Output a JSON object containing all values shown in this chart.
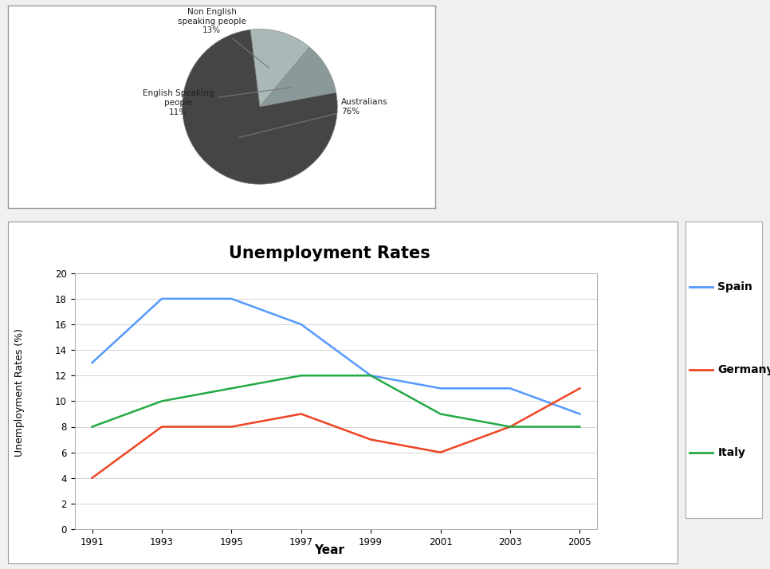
{
  "pie_values": [
    13,
    11,
    76
  ],
  "pie_colors": [
    "#aab8b8",
    "#8a9a9a",
    "#454545"
  ],
  "pie_startangle": 97,
  "line_title": "Unemployment Rates",
  "line_xlabel": "Year",
  "line_ylabel": "Unemployment Rates (%)",
  "years": [
    1991,
    1993,
    1995,
    1997,
    1999,
    2001,
    2003,
    2005
  ],
  "spain": [
    13,
    18,
    18,
    16,
    12,
    11,
    11,
    9
  ],
  "germany": [
    4,
    8,
    8,
    9,
    7,
    6,
    8,
    11
  ],
  "italy": [
    8,
    10,
    11,
    12,
    12,
    9,
    8,
    8
  ],
  "spain_color": "#5599ff",
  "germany_color": "#ee4422",
  "italy_color": "#22aa44",
  "ylim": [
    0,
    20
  ],
  "yticks": [
    0,
    2,
    4,
    6,
    8,
    10,
    12,
    14,
    16,
    18,
    20
  ],
  "legend_labels": [
    "Spain",
    "Germany",
    "Italy"
  ],
  "bg_color": "#f0f0f0",
  "box_color": "#ffffff"
}
